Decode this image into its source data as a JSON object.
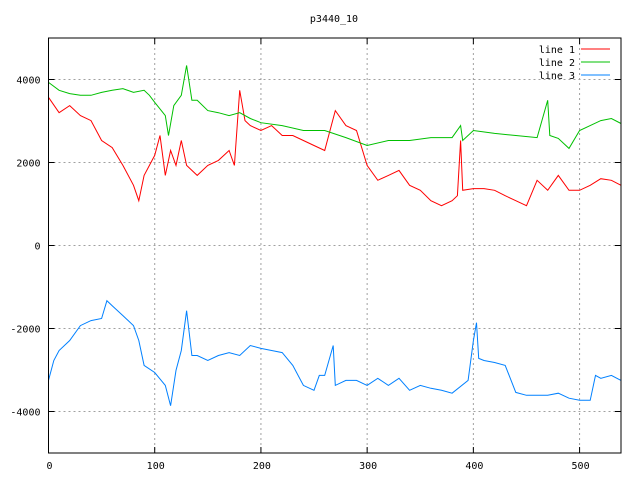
{
  "chart_data": {
    "type": "line",
    "title": "p3440_10",
    "xlabel": "",
    "ylabel": "",
    "xlim": [
      0,
      539
    ],
    "ylim": [
      -5000,
      5000
    ],
    "xticks": [
      0,
      100,
      200,
      300,
      400,
      500
    ],
    "yticks": [
      -4000,
      -2000,
      0,
      2000,
      4000
    ],
    "grid": true,
    "legend_position": "top-right",
    "series": [
      {
        "name": "line 1",
        "color": "#ff0000",
        "x": [
          0,
          10,
          20,
          30,
          40,
          50,
          60,
          70,
          80,
          85,
          90,
          100,
          105,
          110,
          115,
          120,
          125,
          130,
          140,
          150,
          160,
          170,
          175,
          180,
          185,
          190,
          200,
          210,
          220,
          230,
          240,
          250,
          260,
          270,
          280,
          290,
          300,
          310,
          320,
          330,
          340,
          350,
          360,
          370,
          380,
          385,
          388,
          390,
          400,
          410,
          420,
          430,
          440,
          450,
          460,
          470,
          480,
          490,
          500,
          510,
          520,
          530,
          539
        ],
        "y": [
          3570,
          3200,
          3370,
          3130,
          3010,
          2530,
          2360,
          1930,
          1450,
          1080,
          1690,
          2170,
          2650,
          1690,
          2290,
          1930,
          2530,
          1930,
          1690,
          1930,
          2050,
          2290,
          1930,
          3740,
          3010,
          2890,
          2770,
          2890,
          2650,
          2650,
          2530,
          2410,
          2290,
          3250,
          2890,
          2770,
          1930,
          1570,
          1690,
          1810,
          1450,
          1330,
          1080,
          960,
          1080,
          1200,
          2530,
          1330,
          1370,
          1370,
          1330,
          1200,
          1080,
          960,
          1570,
          1330,
          1690,
          1330,
          1330,
          1450,
          1610,
          1570,
          1450
        ]
      },
      {
        "name": "line 2",
        "color": "#00c000",
        "x": [
          0,
          10,
          20,
          30,
          40,
          50,
          60,
          70,
          80,
          90,
          95,
          100,
          110,
          113,
          118,
          125,
          130,
          135,
          140,
          150,
          160,
          170,
          180,
          190,
          200,
          220,
          240,
          260,
          280,
          300,
          320,
          340,
          360,
          380,
          388,
          390,
          400,
          420,
          440,
          460,
          470,
          472,
          480,
          490,
          500,
          510,
          520,
          530,
          539
        ],
        "y": [
          3930,
          3740,
          3660,
          3620,
          3620,
          3690,
          3740,
          3780,
          3690,
          3740,
          3620,
          3450,
          3130,
          2650,
          3370,
          3620,
          4340,
          3500,
          3500,
          3250,
          3200,
          3130,
          3200,
          3060,
          2960,
          2890,
          2770,
          2770,
          2600,
          2410,
          2530,
          2530,
          2600,
          2600,
          2890,
          2530,
          2770,
          2700,
          2650,
          2600,
          3500,
          2650,
          2580,
          2340,
          2770,
          2890,
          3010,
          3060,
          2940
        ]
      },
      {
        "name": "line 3",
        "color": "#0080ff",
        "x": [
          0,
          5,
          10,
          20,
          30,
          40,
          50,
          55,
          60,
          70,
          80,
          85,
          90,
          100,
          110,
          115,
          120,
          125,
          130,
          135,
          140,
          150,
          160,
          170,
          180,
          190,
          200,
          210,
          220,
          230,
          240,
          250,
          255,
          260,
          268,
          270,
          280,
          290,
          300,
          310,
          320,
          330,
          340,
          350,
          360,
          370,
          380,
          395,
          400,
          403,
          405,
          410,
          420,
          430,
          440,
          450,
          460,
          470,
          480,
          490,
          500,
          510,
          515,
          520,
          530,
          539
        ],
        "y": [
          -3250,
          -2770,
          -2530,
          -2290,
          -1930,
          -1810,
          -1760,
          -1330,
          -1450,
          -1690,
          -1930,
          -2290,
          -2890,
          -3060,
          -3370,
          -3860,
          -3010,
          -2530,
          -1570,
          -2650,
          -2650,
          -2770,
          -2650,
          -2580,
          -2650,
          -2410,
          -2480,
          -2530,
          -2580,
          -2890,
          -3370,
          -3490,
          -3130,
          -3130,
          -2410,
          -3370,
          -3250,
          -3250,
          -3370,
          -3200,
          -3370,
          -3200,
          -3490,
          -3370,
          -3440,
          -3490,
          -3560,
          -3250,
          -2290,
          -1860,
          -2720,
          -2770,
          -2820,
          -2890,
          -3540,
          -3610,
          -3610,
          -3610,
          -3560,
          -3680,
          -3730,
          -3730,
          -3130,
          -3200,
          -3130,
          -3250
        ]
      }
    ]
  }
}
